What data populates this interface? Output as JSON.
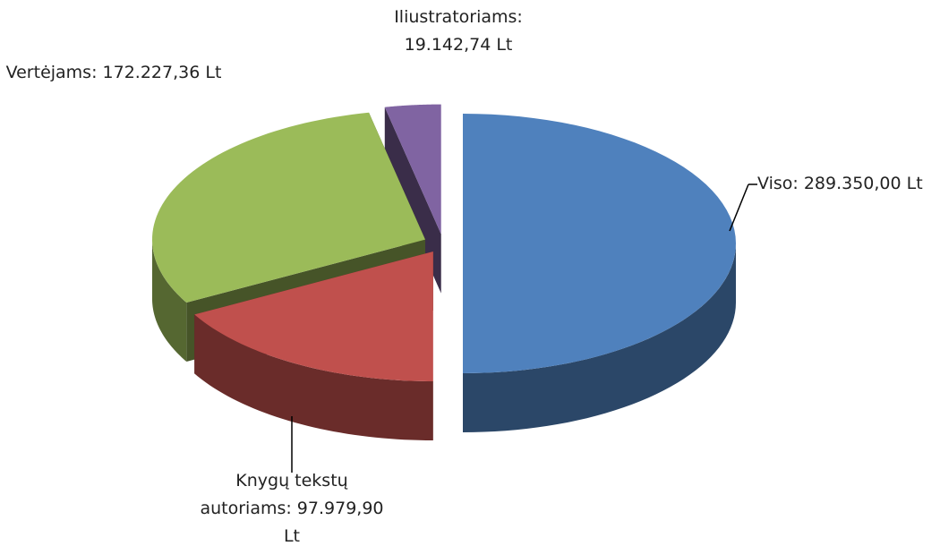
{
  "chart_data": {
    "type": "pie",
    "values": [
      289350.0,
      97979.9,
      172227.36,
      19142.74
    ],
    "value_labels": [
      "Viso: 289.350,00 Lt",
      "Knygų tekstų autoriams: 97.979,90 Lt",
      "Vertėjams: 172.227,36 Lt",
      "Iliustratoriams: 19.142,74 Lt"
    ],
    "colors": [
      "#4f81bd",
      "#c0504d",
      "#9bbb59",
      "#8064a2"
    ]
  }
}
